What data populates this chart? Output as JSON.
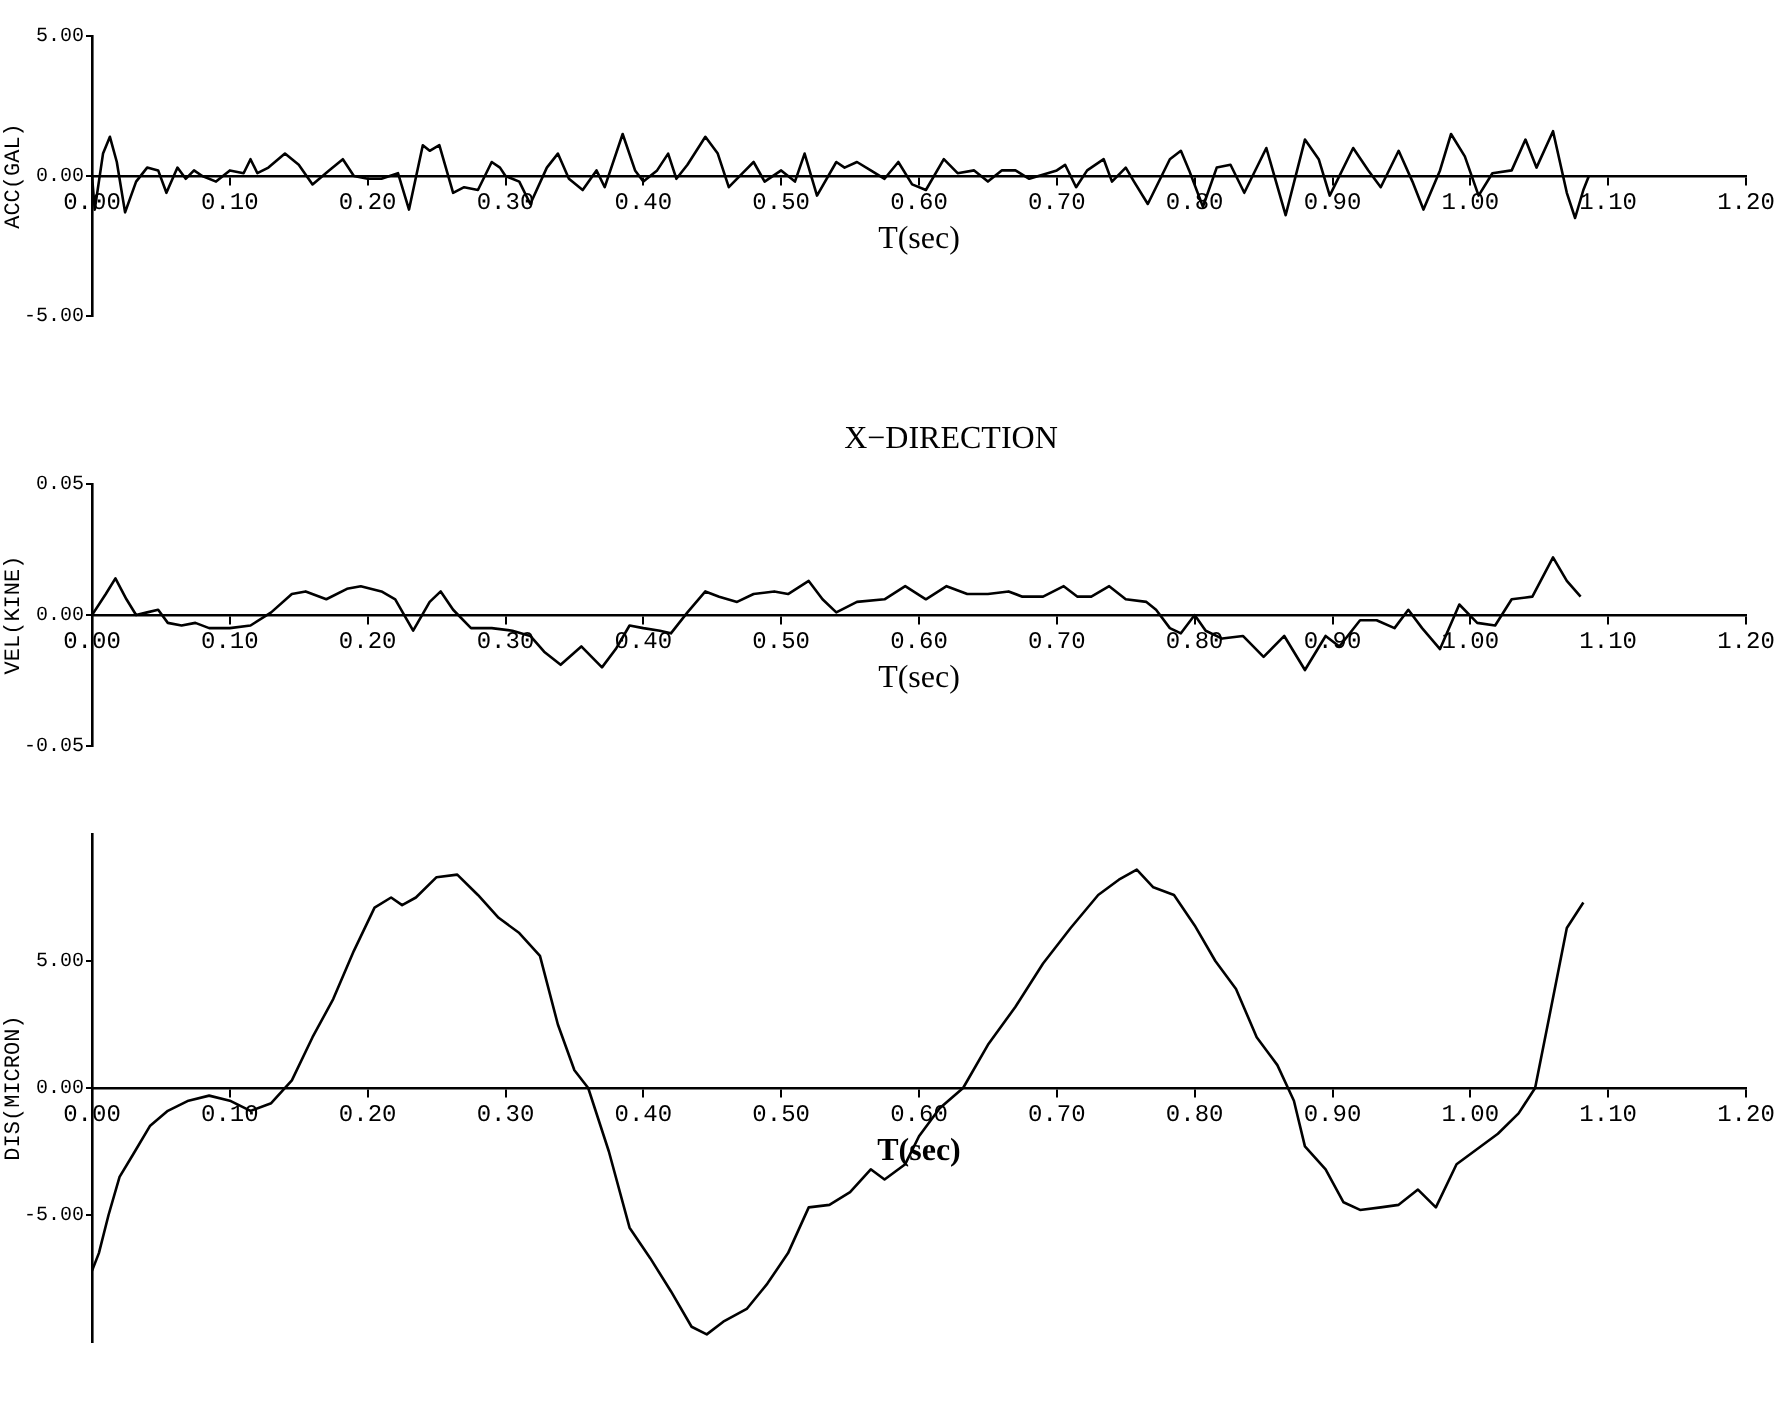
{
  "chart_data": [
    {
      "type": "line",
      "xlabel": "T(sec)",
      "ylabel": "ACC(GAL)",
      "color": "#000000",
      "xlim": [
        0,
        1.2
      ],
      "ylim": [
        -5,
        5
      ],
      "xticks": [
        {
          "value": 0,
          "label": "0.00"
        },
        {
          "value": 0.1,
          "label": "0.10"
        },
        {
          "value": 0.2,
          "label": "0.20"
        },
        {
          "value": 0.3,
          "label": "0.30"
        },
        {
          "value": 0.4,
          "label": "0.40"
        },
        {
          "value": 0.5,
          "label": "0.50"
        },
        {
          "value": 0.6,
          "label": "0.60"
        },
        {
          "value": 0.7,
          "label": "0.70"
        },
        {
          "value": 0.8,
          "label": "0.80"
        },
        {
          "value": 0.9,
          "label": "0.90"
        },
        {
          "value": 1.0,
          "label": "1.00"
        },
        {
          "value": 1.1,
          "label": "1.10"
        },
        {
          "value": 1.2,
          "label": "1.20"
        }
      ],
      "yticks": [
        {
          "value": -5,
          "label": "-5.00"
        },
        {
          "value": 0,
          "label": "0.00"
        },
        {
          "value": 5,
          "label": "5.00"
        }
      ],
      "x": [
        0,
        0.002,
        0.008,
        0.013,
        0.018,
        0.024,
        0.032,
        0.04,
        0.048,
        0.054,
        0.062,
        0.068,
        0.074,
        0.08,
        0.09,
        0.1,
        0.11,
        0.115,
        0.12,
        0.128,
        0.14,
        0.15,
        0.16,
        0.172,
        0.182,
        0.19,
        0.2,
        0.21,
        0.222,
        0.23,
        0.24,
        0.245,
        0.252,
        0.262,
        0.27,
        0.28,
        0.29,
        0.296,
        0.3,
        0.31,
        0.318,
        0.33,
        0.338,
        0.346,
        0.356,
        0.366,
        0.372,
        0.385,
        0.394,
        0.4,
        0.41,
        0.418,
        0.424,
        0.432,
        0.445,
        0.454,
        0.462,
        0.472,
        0.48,
        0.488,
        0.5,
        0.51,
        0.517,
        0.526,
        0.54,
        0.546,
        0.555,
        0.565,
        0.575,
        0.585,
        0.595,
        0.605,
        0.618,
        0.628,
        0.64,
        0.65,
        0.66,
        0.67,
        0.68,
        0.7,
        0.706,
        0.714,
        0.722,
        0.734,
        0.74,
        0.75,
        0.756,
        0.766,
        0.782,
        0.79,
        0.796,
        0.806,
        0.816,
        0.826,
        0.836,
        0.852,
        0.866,
        0.88,
        0.89,
        0.898,
        0.915,
        0.926,
        0.935,
        0.948,
        0.958,
        0.966,
        0.978,
        0.986,
        0.996,
        1.006,
        1.016,
        1.03,
        1.04,
        1.048,
        1.06,
        1.07,
        1.076,
        1.082,
        1.086
      ],
      "values": [
        0,
        -1.2,
        0.8,
        1.4,
        0.5,
        -1.3,
        -0.2,
        0.3,
        0.2,
        -0.6,
        0.3,
        -0.1,
        0.2,
        0,
        -0.2,
        0.2,
        0.1,
        0.6,
        0.1,
        0.3,
        0.8,
        0.4,
        -0.3,
        0.2,
        0.6,
        0,
        -0.1,
        -0.1,
        0.1,
        -1.2,
        1.1,
        0.9,
        1.1,
        -0.6,
        -0.4,
        -0.5,
        0.5,
        0.3,
        0,
        -0.2,
        -1.0,
        0.3,
        0.8,
        -0.1,
        -0.5,
        0.2,
        -0.4,
        1.5,
        0.2,
        -0.2,
        0.2,
        0.8,
        -0.1,
        0.4,
        1.4,
        0.8,
        -0.4,
        0.1,
        0.5,
        -0.2,
        0.2,
        -0.2,
        0.8,
        -0.7,
        0.5,
        0.3,
        0.5,
        0.2,
        -0.1,
        0.5,
        -0.3,
        -0.5,
        0.6,
        0.1,
        0.2,
        -0.2,
        0.2,
        0.2,
        -0.1,
        0.2,
        0.4,
        -0.4,
        0.2,
        0.6,
        -0.2,
        0.3,
        -0.2,
        -1.0,
        0.6,
        0.9,
        0.2,
        -1.1,
        0.3,
        0.4,
        -0.6,
        1.0,
        -1.4,
        1.3,
        0.6,
        -0.7,
        1.0,
        0.2,
        -0.4,
        0.9,
        -0.2,
        -1.2,
        0.2,
        1.5,
        0.7,
        -0.7,
        0.1,
        0.2,
        1.3,
        0.3,
        1.6,
        -0.6,
        -1.5,
        -0.5,
        0
      ]
    },
    {
      "type": "line",
      "title": "X−DIRECTION",
      "xlabel": "T(sec)",
      "ylabel": "VEL(KINE)",
      "color": "#000000",
      "xlim": [
        0,
        1.2
      ],
      "ylim": [
        -0.05,
        0.05
      ],
      "xticks": [
        {
          "value": 0,
          "label": "0.00"
        },
        {
          "value": 0.1,
          "label": "0.10"
        },
        {
          "value": 0.2,
          "label": "0.20"
        },
        {
          "value": 0.3,
          "label": "0.30"
        },
        {
          "value": 0.4,
          "label": "0.40"
        },
        {
          "value": 0.5,
          "label": "0.50"
        },
        {
          "value": 0.6,
          "label": "0.60"
        },
        {
          "value": 0.7,
          "label": "0.70"
        },
        {
          "value": 0.8,
          "label": "0.80"
        },
        {
          "value": 0.9,
          "label": "0.90"
        },
        {
          "value": 1.0,
          "label": "1.00"
        },
        {
          "value": 1.1,
          "label": "1.10"
        },
        {
          "value": 1.2,
          "label": "1.20"
        }
      ],
      "yticks": [
        {
          "value": -0.05,
          "label": "-0.05"
        },
        {
          "value": 0,
          "label": "0.00"
        },
        {
          "value": 0.05,
          "label": "0.05"
        }
      ],
      "x": [
        0,
        0.01,
        0.017,
        0.025,
        0.032,
        0.04,
        0.048,
        0.055,
        0.065,
        0.075,
        0.085,
        0.1,
        0.115,
        0.13,
        0.145,
        0.155,
        0.17,
        0.185,
        0.195,
        0.21,
        0.22,
        0.233,
        0.245,
        0.253,
        0.262,
        0.275,
        0.29,
        0.305,
        0.318,
        0.328,
        0.34,
        0.355,
        0.37,
        0.38,
        0.39,
        0.4,
        0.412,
        0.42,
        0.432,
        0.445,
        0.455,
        0.468,
        0.48,
        0.495,
        0.505,
        0.52,
        0.53,
        0.54,
        0.555,
        0.575,
        0.59,
        0.605,
        0.62,
        0.635,
        0.65,
        0.665,
        0.675,
        0.69,
        0.705,
        0.715,
        0.725,
        0.738,
        0.75,
        0.765,
        0.772,
        0.782,
        0.79,
        0.8,
        0.808,
        0.82,
        0.835,
        0.85,
        0.865,
        0.88,
        0.895,
        0.905,
        0.92,
        0.932,
        0.945,
        0.955,
        0.965,
        0.978,
        0.992,
        1.005,
        1.018,
        1.03,
        1.045,
        1.06,
        1.07,
        1.08
      ],
      "values": [
        0,
        0.008,
        0.014,
        0.006,
        0,
        0.001,
        0.002,
        -0.003,
        -0.004,
        -0.003,
        -0.005,
        -0.005,
        -0.004,
        0.001,
        0.008,
        0.009,
        0.006,
        0.01,
        0.011,
        0.009,
        0.006,
        -0.006,
        0.005,
        0.009,
        0.002,
        -0.005,
        -0.005,
        -0.006,
        -0.008,
        -0.014,
        -0.019,
        -0.012,
        -0.02,
        -0.013,
        -0.004,
        -0.005,
        -0.006,
        -0.007,
        0.001,
        0.009,
        0.007,
        0.005,
        0.008,
        0.009,
        0.008,
        0.013,
        0.006,
        0.001,
        0.005,
        0.006,
        0.011,
        0.006,
        0.011,
        0.008,
        0.008,
        0.009,
        0.007,
        0.007,
        0.011,
        0.007,
        0.007,
        0.011,
        0.006,
        0.005,
        0.002,
        -0.005,
        -0.007,
        0,
        -0.006,
        -0.009,
        -0.008,
        -0.016,
        -0.008,
        -0.021,
        -0.008,
        -0.012,
        -0.002,
        -0.002,
        -0.005,
        0.002,
        -0.005,
        -0.013,
        0.004,
        -0.003,
        -0.004,
        0.006,
        0.007,
        0.022,
        0.013,
        0.007
      ]
    },
    {
      "type": "line",
      "xlabel": "T(sec)",
      "ylabel": "DIS(MICRON)",
      "color": "#000000",
      "xlim": [
        0,
        1.2
      ],
      "ylim": [
        -10,
        10
      ],
      "xticks": [
        {
          "value": 0,
          "label": "0.00"
        },
        {
          "value": 0.1,
          "label": "0.10"
        },
        {
          "value": 0.2,
          "label": "0.20"
        },
        {
          "value": 0.3,
          "label": "0.30"
        },
        {
          "value": 0.4,
          "label": "0.40"
        },
        {
          "value": 0.5,
          "label": "0.50"
        },
        {
          "value": 0.6,
          "label": "0.60"
        },
        {
          "value": 0.7,
          "label": "0.70"
        },
        {
          "value": 0.8,
          "label": "0.80"
        },
        {
          "value": 0.9,
          "label": "0.90"
        },
        {
          "value": 1.0,
          "label": "1.00"
        },
        {
          "value": 1.1,
          "label": "1.10"
        },
        {
          "value": 1.2,
          "label": "1.20"
        }
      ],
      "yticks": [
        {
          "value": -5,
          "label": "-5.00"
        },
        {
          "value": 0,
          "label": "0.00"
        },
        {
          "value": 5,
          "label": "5.00"
        }
      ],
      "x": [
        0,
        0.005,
        0.012,
        0.02,
        0.03,
        0.042,
        0.055,
        0.07,
        0.085,
        0.1,
        0.115,
        0.13,
        0.145,
        0.16,
        0.175,
        0.19,
        0.205,
        0.217,
        0.225,
        0.235,
        0.25,
        0.265,
        0.28,
        0.295,
        0.31,
        0.325,
        0.338,
        0.35,
        0.36,
        0.375,
        0.39,
        0.405,
        0.42,
        0.435,
        0.446,
        0.458,
        0.475,
        0.49,
        0.505,
        0.52,
        0.535,
        0.55,
        0.565,
        0.575,
        0.59,
        0.6,
        0.615,
        0.632,
        0.65,
        0.67,
        0.69,
        0.71,
        0.73,
        0.745,
        0.758,
        0.77,
        0.785,
        0.8,
        0.815,
        0.83,
        0.845,
        0.86,
        0.872,
        0.88,
        0.895,
        0.908,
        0.92,
        0.935,
        0.948,
        0.962,
        0.975,
        0.99,
        1.005,
        1.02,
        1.035,
        1.047,
        1.058,
        1.07,
        1.082
      ],
      "values": [
        -7.2,
        -6.5,
        -5.0,
        -3.5,
        -2.6,
        -1.5,
        -0.9,
        -0.5,
        -0.3,
        -0.5,
        -0.9,
        -0.6,
        0.3,
        2.0,
        3.5,
        5.4,
        7.1,
        7.5,
        7.2,
        7.5,
        8.3,
        8.4,
        7.6,
        6.7,
        6.1,
        5.2,
        2.5,
        0.7,
        0,
        -2.5,
        -5.5,
        -6.7,
        -8.0,
        -9.4,
        -9.7,
        -9.2,
        -8.7,
        -7.7,
        -6.5,
        -4.7,
        -4.6,
        -4.1,
        -3.2,
        -3.6,
        -3.0,
        -1.9,
        -0.8,
        0,
        1.7,
        3.2,
        4.9,
        6.3,
        7.6,
        8.2,
        8.6,
        7.9,
        7.6,
        6.4,
        5.0,
        3.9,
        2.0,
        0.9,
        -0.5,
        -2.3,
        -3.2,
        -4.5,
        -4.8,
        -4.7,
        -4.6,
        -4.0,
        -4.7,
        -3.0,
        -2.4,
        -1.8,
        -1.0,
        0,
        3.0,
        6.3,
        7.3
      ]
    }
  ]
}
